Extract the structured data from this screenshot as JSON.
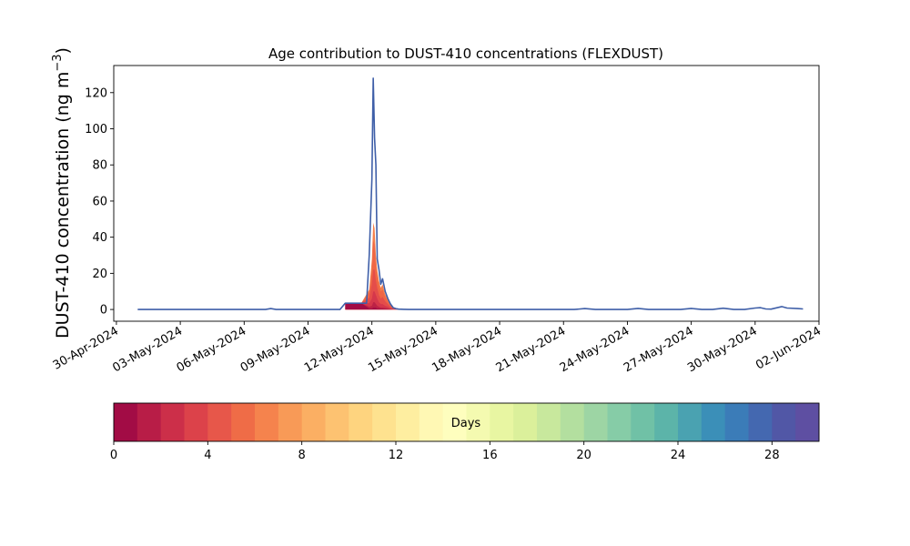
{
  "chart_data": {
    "type": "area",
    "title": "Age contribution to DUST-410 concentrations (FLEXDUST)",
    "ylabel_main": "DUST-410 concentration (ng m",
    "ylabel_sup": "−3",
    "ylabel_tail": ")",
    "xlabel": "",
    "x_axis": {
      "type": "date",
      "range": [
        "2024-04-29T21:00",
        "2024-06-02T00:00"
      ],
      "tick_dates": [
        "2024-04-30",
        "2024-05-03",
        "2024-05-06",
        "2024-05-09",
        "2024-05-12",
        "2024-05-15",
        "2024-05-18",
        "2024-05-21",
        "2024-05-24",
        "2024-05-27",
        "2024-05-30",
        "2024-06-02"
      ],
      "tick_labels": [
        "30-Apr-2024",
        "03-May-2024",
        "06-May-2024",
        "09-May-2024",
        "12-May-2024",
        "15-May-2024",
        "18-May-2024",
        "21-May-2024",
        "24-May-2024",
        "27-May-2024",
        "30-May-2024",
        "02-Jun-2024"
      ]
    },
    "y_axis": {
      "range": [
        -6.5,
        135
      ],
      "ticks": [
        0,
        20,
        40,
        60,
        80,
        100,
        120
      ],
      "tick_labels": [
        "0",
        "20",
        "40",
        "60",
        "80",
        "100",
        "120"
      ]
    },
    "grid": false,
    "total_line_color": "#3f5fa8",
    "total_series": {
      "name": "",
      "x": [
        "2024-05-01T00:00",
        "2024-05-07T00:00",
        "2024-05-07T06:00",
        "2024-05-07T12:00",
        "2024-05-09T12:00",
        "2024-05-10T12:00",
        "2024-05-10T18:00",
        "2024-05-11T12:00",
        "2024-05-11T15:00",
        "2024-05-11T18:00",
        "2024-05-11T21:00",
        "2024-05-12T00:00",
        "2024-05-12T01:30",
        "2024-05-12T03:00",
        "2024-05-12T04:30",
        "2024-05-12T06:00",
        "2024-05-12T08:00",
        "2024-05-12T10:00",
        "2024-05-12T12:00",
        "2024-05-12T15:00",
        "2024-05-12T18:00",
        "2024-05-12T21:00",
        "2024-05-13T00:00",
        "2024-05-13T03:00",
        "2024-05-13T06:00",
        "2024-05-13T12:00",
        "2024-05-13T18:00",
        "2024-05-14T00:00",
        "2024-05-21T12:00",
        "2024-05-22T00:00",
        "2024-05-22T12:00",
        "2024-05-24T00:00",
        "2024-05-24T12:00",
        "2024-05-25T00:00",
        "2024-05-26T12:00",
        "2024-05-27T00:00",
        "2024-05-27T12:00",
        "2024-05-28T00:00",
        "2024-05-28T12:00",
        "2024-05-29T00:00",
        "2024-05-29T12:00",
        "2024-05-30T00:00",
        "2024-05-30T06:00",
        "2024-05-30T12:00",
        "2024-05-30T18:00",
        "2024-05-31T00:00",
        "2024-05-31T06:00",
        "2024-05-31T12:00",
        "2024-06-01T00:00",
        "2024-06-01T06:00"
      ],
      "y": [
        0,
        0,
        0.5,
        0,
        0,
        0,
        3.5,
        3.5,
        3.5,
        3.5,
        30,
        72,
        128,
        95,
        80,
        28,
        22,
        14,
        17,
        10,
        6,
        3,
        1,
        0.5,
        0.2,
        0.1,
        0,
        0,
        0,
        0.5,
        0,
        0,
        0.6,
        0,
        0,
        0.6,
        0,
        0,
        0.7,
        0,
        0,
        0.8,
        1,
        0.3,
        0.2,
        0.9,
        1.6,
        0.8,
        0.5,
        0.3
      ]
    },
    "age_bands": [
      {
        "days_from": 0,
        "days_to": 1,
        "color": "#a20c45"
      },
      {
        "days_from": 1,
        "days_to": 2,
        "color": "#bc2246"
      },
      {
        "days_from": 2,
        "days_to": 3,
        "color": "#d5374b"
      },
      {
        "days_from": 3,
        "days_to": 4,
        "color": "#e44d4a"
      },
      {
        "days_from": 4,
        "days_to": 5,
        "color": "#ef6645"
      },
      {
        "days_from": 5,
        "days_to": 6,
        "color": "#f47f4b"
      }
    ],
    "age_profile": {
      "x": [
        "2024-05-10T18:00",
        "2024-05-11T12:00",
        "2024-05-11T21:00",
        "2024-05-12T00:00",
        "2024-05-12T01:30",
        "2024-05-12T03:00",
        "2024-05-12T04:30",
        "2024-05-12T06:00",
        "2024-05-12T08:00",
        "2024-05-12T10:00",
        "2024-05-12T12:00",
        "2024-05-12T15:00",
        "2024-05-12T18:00",
        "2024-05-12T21:00",
        "2024-05-13T00:00",
        "2024-05-13T06:00"
      ],
      "cumulative_band_tops": [
        [
          3.5,
          3.5,
          3.5,
          3.5,
          3.5,
          3.5
        ],
        [
          3.5,
          3.5,
          3.5,
          3.5,
          3.5,
          3.5
        ],
        [
          0.5,
          1.5,
          3.5,
          6.5,
          9.5,
          11
        ],
        [
          0.5,
          2,
          6,
          14,
          22,
          28
        ],
        [
          1,
          4,
          10,
          22,
          38,
          48
        ],
        [
          1,
          4,
          10,
          22,
          36,
          45
        ],
        [
          1,
          3,
          8,
          16,
          24,
          30
        ],
        [
          0.5,
          2,
          6,
          12,
          18,
          22
        ],
        [
          0.5,
          1.5,
          4,
          8,
          13,
          16
        ],
        [
          0.3,
          1,
          3,
          6,
          10,
          12
        ],
        [
          0.3,
          1,
          3,
          7,
          11,
          14
        ],
        [
          0.2,
          0.8,
          2,
          4.5,
          7,
          8.5
        ],
        [
          0.1,
          0.5,
          1.5,
          3,
          4.5,
          5.5
        ],
        [
          0.05,
          0.2,
          0.6,
          1.5,
          2.2,
          2.8
        ],
        [
          0,
          0.1,
          0.2,
          0.5,
          0.8,
          1
        ],
        [
          0,
          0,
          0,
          0.1,
          0.15,
          0.2
        ]
      ]
    },
    "colorbar": {
      "label": "Days",
      "range": [
        0,
        30
      ],
      "ticks": [
        0,
        4,
        8,
        12,
        16,
        20,
        24,
        28
      ],
      "tick_labels": [
        "0",
        "4",
        "8",
        "12",
        "16",
        "20",
        "24",
        "28"
      ],
      "colors": [
        "#a20c45",
        "#b81d47",
        "#cc2f49",
        "#dc424a",
        "#e7574a",
        "#ef6c47",
        "#f5834d",
        "#f89a57",
        "#fbaf63",
        "#fdc271",
        "#fed47f",
        "#fee28f",
        "#feeea0",
        "#fff8b4",
        "#fefebe",
        "#f4fab0",
        "#e8f6a2",
        "#dbf09b",
        "#c8e89d",
        "#b3df9f",
        "#9dd5a4",
        "#86cca7",
        "#70c1a6",
        "#5cb4a9",
        "#4aa2b1",
        "#3b8fb8",
        "#3b7cb8",
        "#4468b0",
        "#5157a6",
        "#5e4fa2"
      ]
    }
  }
}
